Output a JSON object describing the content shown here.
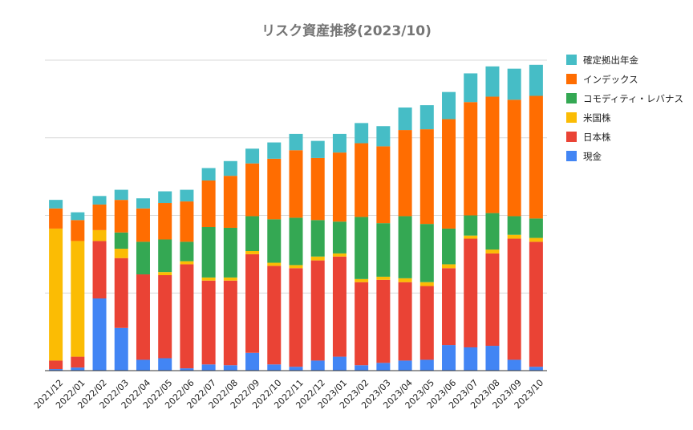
{
  "chart_data": {
    "type": "bar",
    "stacked": true,
    "title": "リスク資産推移(2023/10)",
    "xlabel": "",
    "ylabel": "",
    "ylim": [
      0,
      4
    ],
    "y_tick_labels_shown": false,
    "grid": true,
    "legend_position": "right",
    "categories": [
      "2021/12",
      "2022/01",
      "2022/02",
      "2022/03",
      "2022/04",
      "2022/05",
      "2022/06",
      "2022/07",
      "2022/08",
      "2022/09",
      "2022/10",
      "2022/11",
      "2022/12",
      "2023/01",
      "2023/02",
      "2023/03",
      "2023/04",
      "2023/05",
      "2023/06",
      "2023/07",
      "2023/08",
      "2023/09",
      "2023/10"
    ],
    "series": [
      {
        "name": "現金",
        "color": "#4285f4",
        "values": [
          0.02,
          0.04,
          0.93,
          0.55,
          0.14,
          0.16,
          0.03,
          0.08,
          0.07,
          0.23,
          0.08,
          0.05,
          0.13,
          0.18,
          0.07,
          0.1,
          0.13,
          0.14,
          0.33,
          0.3,
          0.32,
          0.14,
          0.05
        ]
      },
      {
        "name": "日本株",
        "color": "#ea4335",
        "values": [
          0.11,
          0.14,
          0.74,
          0.9,
          1.1,
          1.07,
          1.34,
          1.08,
          1.09,
          1.27,
          1.27,
          1.27,
          1.29,
          1.29,
          1.07,
          1.07,
          1.01,
          0.95,
          0.99,
          1.4,
          1.19,
          1.56,
          1.61
        ]
      },
      {
        "name": "米国株",
        "color": "#fbbc04",
        "values": [
          1.7,
          1.49,
          0.14,
          0.12,
          0.0,
          0.04,
          0.04,
          0.04,
          0.04,
          0.04,
          0.04,
          0.04,
          0.05,
          0.04,
          0.04,
          0.04,
          0.05,
          0.05,
          0.05,
          0.04,
          0.05,
          0.05,
          0.05
        ]
      },
      {
        "name": "コモディティ・レバナス",
        "color": "#34a853",
        "values": [
          0.0,
          0.0,
          0.0,
          0.21,
          0.42,
          0.42,
          0.25,
          0.65,
          0.64,
          0.45,
          0.56,
          0.61,
          0.47,
          0.41,
          0.8,
          0.69,
          0.8,
          0.75,
          0.46,
          0.26,
          0.47,
          0.24,
          0.25
        ]
      },
      {
        "name": "インデックス",
        "color": "#ff6d01",
        "values": [
          0.26,
          0.27,
          0.33,
          0.42,
          0.43,
          0.47,
          0.52,
          0.6,
          0.67,
          0.68,
          0.78,
          0.87,
          0.8,
          0.89,
          0.95,
          0.99,
          1.11,
          1.22,
          1.41,
          1.46,
          1.5,
          1.5,
          1.58
        ]
      },
      {
        "name": "確定拠出年金",
        "color": "#46bdc6",
        "values": [
          0.11,
          0.1,
          0.11,
          0.13,
          0.13,
          0.15,
          0.15,
          0.16,
          0.19,
          0.19,
          0.21,
          0.21,
          0.22,
          0.24,
          0.26,
          0.26,
          0.29,
          0.31,
          0.35,
          0.37,
          0.39,
          0.4,
          0.4
        ]
      }
    ]
  }
}
